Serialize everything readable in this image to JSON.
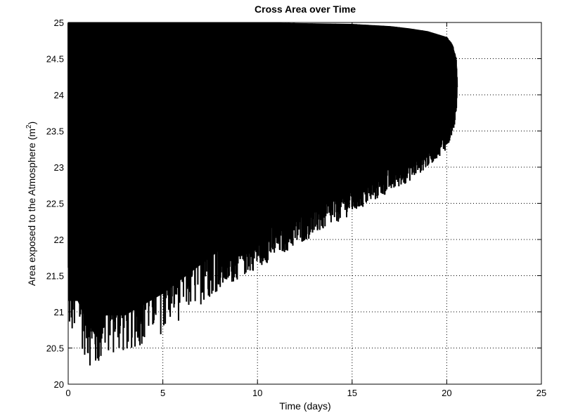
{
  "chart_data": {
    "type": "line",
    "title": "Cross Area over Time",
    "xlabel": "Time (days)",
    "ylabel": "Area exposed to the Atmosphere (m",
    "ylabel_sup": "2",
    "ylabel_close": ")",
    "xlim": [
      0,
      25
    ],
    "ylim": [
      20,
      25
    ],
    "xticks": [
      "0",
      "5",
      "10",
      "15",
      "20",
      "25"
    ],
    "yticks": [
      "20",
      "20.5",
      "21",
      "21.5",
      "22",
      "22.5",
      "23",
      "23.5",
      "24",
      "24.5",
      "25"
    ],
    "grid": true,
    "line_color": "#000000",
    "series": [
      {
        "description_of_shape": "dense oscillation between upper and lower envelopes",
        "upper_envelope": {
          "x": [
            0,
            5,
            10,
            15,
            17,
            18,
            19,
            20,
            20.3,
            20.5,
            20.55
          ],
          "y": [
            25.0,
            25.0,
            25.0,
            24.98,
            24.95,
            24.92,
            24.88,
            24.8,
            24.7,
            24.5,
            24.2
          ]
        },
        "lower_envelope": {
          "x": [
            0,
            0.5,
            1,
            1.5,
            2,
            3,
            4,
            5,
            6,
            7,
            8,
            9,
            10,
            11,
            12,
            13,
            14,
            15,
            16,
            17,
            18,
            19,
            20,
            20.3,
            20.5,
            20.55
          ],
          "y": [
            20.6,
            20.6,
            20.3,
            20.1,
            20.4,
            20.4,
            20.55,
            20.7,
            20.9,
            21.1,
            21.3,
            21.45,
            21.6,
            21.75,
            21.9,
            22.05,
            22.2,
            22.35,
            22.5,
            22.65,
            22.8,
            23.0,
            23.25,
            23.45,
            23.7,
            24.2
          ]
        },
        "t_end": 20.55
      }
    ]
  }
}
